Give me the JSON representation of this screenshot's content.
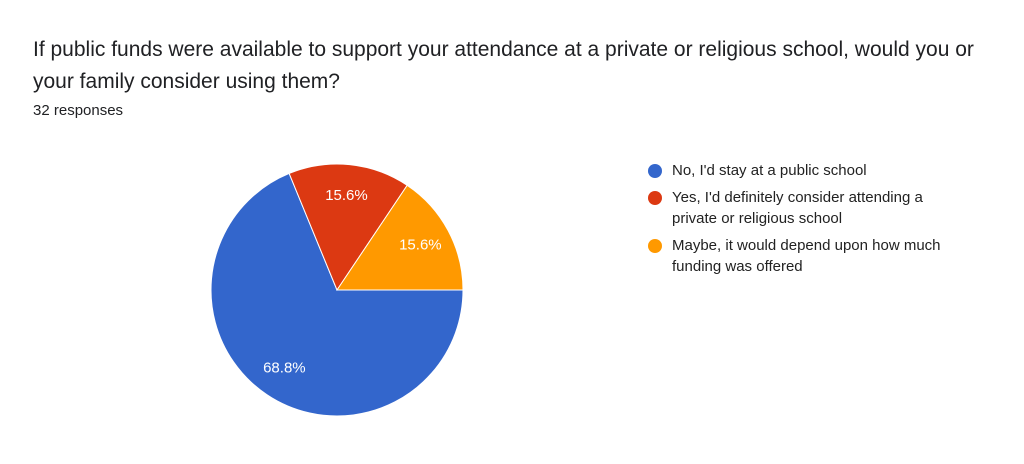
{
  "chart_data": {
    "type": "pie",
    "title": "If public funds were available to support your attendance at a private or religious school, would you or your family consider using them?",
    "subtitle": "32 responses",
    "categories": [
      "No, I'd stay at a public school",
      "Yes, I'd definitely consider attending a private or religious school",
      "Maybe, it would depend upon how much funding was offered"
    ],
    "values": [
      68.8,
      15.6,
      15.6
    ],
    "value_labels": [
      "68.8%",
      "15.6%",
      "15.6%"
    ],
    "colors": [
      "#3366cc",
      "#dc3912",
      "#ff9900"
    ],
    "legend": "right"
  }
}
